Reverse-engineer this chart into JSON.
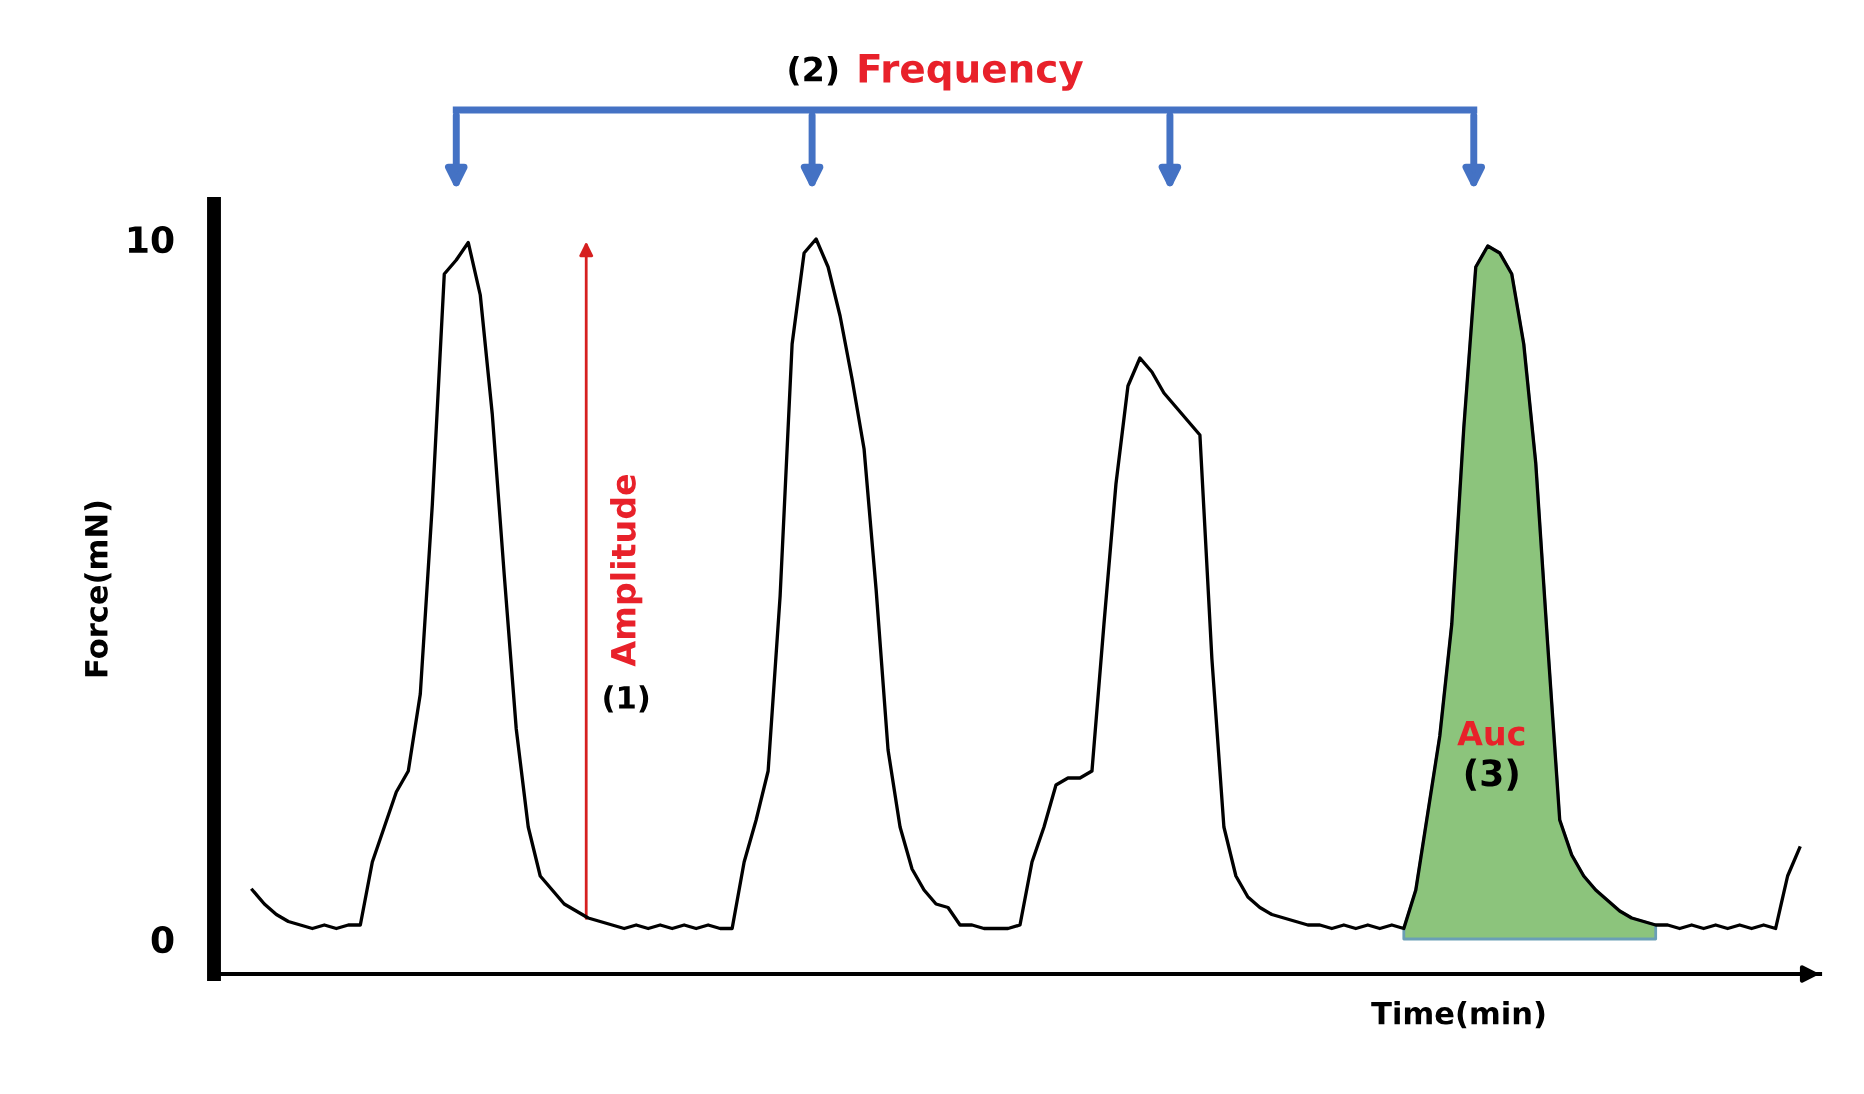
{
  "chart_data": {
    "type": "line",
    "xlabel": "Time(min)",
    "ylabel": "Force(mN)",
    "ylim": [
      -0.5,
      10.5
    ],
    "yticks": [
      0,
      10
    ],
    "tick_labels": "y",
    "marker": "none",
    "line_style": "solid",
    "categories": [
      null,
      null,
      null,
      null,
      null,
      null,
      null,
      null,
      null,
      null,
      null,
      null,
      null,
      null,
      null,
      null,
      null,
      null,
      null,
      null,
      null,
      null,
      null,
      null,
      null,
      null,
      null,
      null,
      null,
      null,
      null,
      null,
      null,
      null,
      null,
      null,
      null,
      null,
      null,
      null,
      null,
      null,
      null,
      null,
      null,
      null,
      null,
      null,
      null,
      null,
      null,
      null,
      null,
      null,
      null,
      null,
      null,
      null,
      null,
      null,
      null,
      null,
      null,
      null,
      null,
      null,
      null,
      null,
      null,
      null,
      null,
      null,
      null,
      null,
      null,
      null,
      null,
      null,
      null,
      null,
      null,
      null,
      null,
      null,
      null,
      null,
      null,
      null,
      null,
      null,
      null,
      null,
      null,
      null,
      null,
      null,
      null,
      null,
      null,
      null,
      null,
      null,
      null,
      null,
      null,
      null,
      null,
      null,
      null,
      null,
      null,
      null,
      null,
      null,
      null,
      null,
      null,
      null,
      null,
      null,
      null,
      null,
      null,
      null,
      null,
      null,
      null,
      null,
      null,
      null
    ],
    "series": [
      {
        "type": "area",
        "color": "#8cc47c",
        "values": [
          null,
          null,
          null,
          null,
          null,
          null,
          null,
          null,
          null,
          null,
          null,
          null,
          null,
          null,
          null,
          null,
          null,
          null,
          null,
          null,
          null,
          null,
          null,
          null,
          null,
          null,
          null,
          null,
          null,
          null,
          null,
          null,
          null,
          null,
          null,
          null,
          null,
          null,
          null,
          null,
          null,
          null,
          null,
          null,
          null,
          null,
          null,
          null,
          null,
          null,
          null,
          null,
          null,
          null,
          null,
          null,
          null,
          null,
          null,
          null,
          null,
          null,
          null,
          null,
          null,
          null,
          null,
          null,
          null,
          null,
          null,
          null,
          null,
          null,
          null,
          null,
          null,
          null,
          null,
          null,
          null,
          null,
          null,
          null,
          null,
          null,
          null,
          null,
          null,
          null,
          null,
          null,
          null,
          null,
          null,
          null,
          0.15,
          0.7,
          1.8,
          2.9,
          4.5,
          7.3,
          9.6,
          9.9,
          9.8,
          9.5,
          8.5,
          6.8,
          4.2,
          1.7,
          1.2,
          0.9,
          0.7,
          0.55,
          0.4,
          0.3,
          0.25,
          0.2,
          null,
          null,
          null,
          null,
          null,
          null,
          null,
          null,
          null,
          null,
          null,
          null
        ]
      },
      {
        "color": "#000000",
        "values": [
          0.7,
          0.5,
          0.35,
          0.25,
          0.2,
          0.15,
          0.2,
          0.15,
          0.2,
          0.2,
          1.1,
          1.6,
          2.1,
          2.4,
          3.5,
          6.2,
          9.5,
          9.7,
          9.95,
          9.2,
          7.5,
          5.2,
          3.0,
          1.6,
          0.9,
          0.7,
          0.5,
          0.4,
          0.3,
          0.25,
          0.2,
          0.15,
          0.2,
          0.15,
          0.2,
          0.15,
          0.2,
          0.15,
          0.2,
          0.15,
          0.15,
          1.1,
          1.7,
          2.4,
          4.9,
          8.5,
          9.8,
          10,
          9.6,
          8.9,
          8.0,
          7.0,
          5.0,
          2.7,
          1.6,
          1.0,
          0.7,
          0.5,
          0.45,
          0.2,
          0.2,
          0.15,
          0.15,
          0.15,
          0.2,
          1.1,
          1.6,
          2.2,
          2.3,
          2.3,
          2.4,
          4.5,
          6.5,
          7.9,
          8.3,
          8.1,
          7.8,
          7.6,
          7.4,
          7.2,
          4.0,
          1.6,
          0.9,
          0.6,
          0.45,
          0.35,
          0.3,
          0.25,
          0.2,
          0.2,
          0.15,
          0.2,
          0.15,
          0.2,
          0.15,
          0.2,
          0.15,
          0.7,
          1.8,
          2.9,
          4.5,
          7.3,
          9.6,
          9.9,
          9.8,
          9.5,
          8.5,
          6.8,
          4.2,
          1.7,
          1.2,
          0.9,
          0.7,
          0.55,
          0.4,
          0.3,
          0.25,
          0.2,
          0.2,
          0.15,
          0.2,
          0.15,
          0.2,
          0.15,
          0.2,
          0.15,
          0.2,
          0.15,
          0.9,
          1.3
        ]
      }
    ],
    "annotations": [
      "(2)",
      "Frequency",
      "Amplitude",
      "(1)",
      "Auc",
      "(3)"
    ]
  }
}
